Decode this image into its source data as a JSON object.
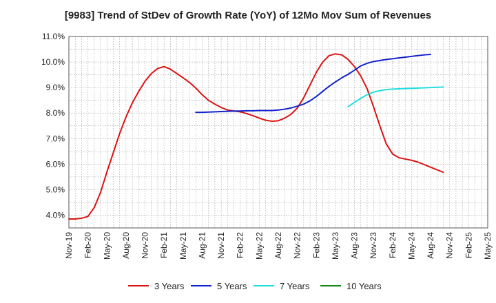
{
  "chart_data": {
    "type": "line",
    "title": "[9983]  Trend of StDev of Growth Rate (YoY) of 12Mo Mov Sum of Revenues",
    "xlabel": "",
    "ylabel": "",
    "ylim": [
      3.5,
      11.0
    ],
    "y_ticks": [
      4.0,
      5.0,
      6.0,
      7.0,
      8.0,
      9.0,
      10.0,
      11.0
    ],
    "y_tick_labels": [
      "4.0%",
      "5.0%",
      "6.0%",
      "7.0%",
      "8.0%",
      "9.0%",
      "10.0%",
      "11.0%"
    ],
    "x_tick_labels": [
      "Nov-19",
      "Feb-20",
      "May-20",
      "Aug-20",
      "Nov-20",
      "Feb-21",
      "May-21",
      "Aug-21",
      "Nov-21",
      "Feb-22",
      "May-22",
      "Aug-22",
      "Nov-22",
      "Feb-23",
      "May-23",
      "Aug-23",
      "Nov-23",
      "Feb-24",
      "May-24",
      "Aug-24",
      "Nov-24",
      "Feb-25",
      "May-25"
    ],
    "grid": true,
    "legend_position": "bottom",
    "series": [
      {
        "name": "3 Years",
        "color": "#dd1111",
        "start_index": 0,
        "values": [
          3.85,
          3.85,
          3.88,
          3.95,
          4.3,
          4.9,
          5.7,
          6.45,
          7.2,
          7.85,
          8.4,
          8.85,
          9.25,
          9.55,
          9.75,
          9.82,
          9.72,
          9.55,
          9.38,
          9.2,
          8.98,
          8.72,
          8.5,
          8.35,
          8.22,
          8.12,
          8.08,
          8.05,
          7.98,
          7.9,
          7.8,
          7.72,
          7.68,
          7.7,
          7.8,
          7.95,
          8.2,
          8.6,
          9.1,
          9.6,
          10.0,
          10.25,
          10.32,
          10.28,
          10.1,
          9.82,
          9.45,
          8.95,
          8.25,
          7.5,
          6.8,
          6.4,
          6.25,
          6.2,
          6.15,
          6.08,
          5.98,
          5.88,
          5.78,
          5.68
        ]
      },
      {
        "name": "5 Years",
        "color": "#1122cc",
        "start_index": 20,
        "values": [
          8.03,
          8.03,
          8.04,
          8.05,
          8.06,
          8.07,
          8.08,
          8.08,
          8.09,
          8.09,
          8.1,
          8.1,
          8.1,
          8.12,
          8.15,
          8.2,
          8.27,
          8.35,
          8.48,
          8.65,
          8.85,
          9.05,
          9.22,
          9.38,
          9.52,
          9.68,
          9.85,
          9.95,
          10.02,
          10.06,
          10.1,
          10.13,
          10.16,
          10.19,
          10.22,
          10.25,
          10.28,
          10.3
        ]
      },
      {
        "name": "7 Years",
        "color": "#22dddd",
        "start_index": 44,
        "values": [
          8.25,
          8.42,
          8.58,
          8.72,
          8.82,
          8.88,
          8.92,
          8.94,
          8.95,
          8.96,
          8.97,
          8.98,
          8.99,
          9.0,
          9.01,
          9.02
        ]
      },
      {
        "name": "10 Years",
        "color": "#118811",
        "start_index": 0,
        "values": []
      }
    ]
  }
}
